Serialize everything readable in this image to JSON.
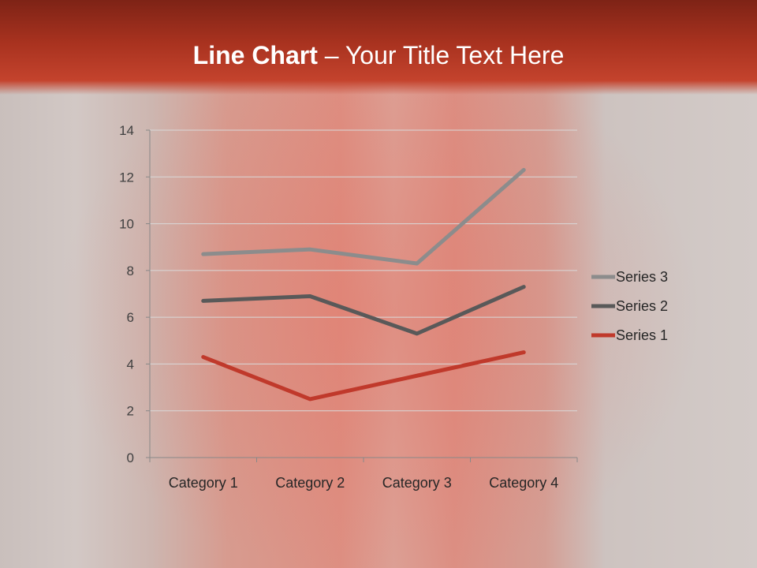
{
  "slide": {
    "title_bold": "Line Chart",
    "title_rest": " – Your Title Text Here"
  },
  "chart_data": {
    "type": "line",
    "stacked": true,
    "categories": [
      "Category 1",
      "Category 2",
      "Category 3",
      "Category 4"
    ],
    "series": [
      {
        "name": "Series 1",
        "values": [
          4.3,
          2.5,
          3.5,
          4.5
        ],
        "color": "#c0392b"
      },
      {
        "name": "Series 2",
        "values": [
          2.4,
          4.4,
          1.8,
          2.8
        ],
        "color": "#595959"
      },
      {
        "name": "Series 3",
        "values": [
          2,
          2,
          3,
          5
        ],
        "color": "#8c8c8c"
      }
    ],
    "ylim": [
      0,
      14
    ],
    "yticks": [
      0,
      2,
      4,
      6,
      8,
      10,
      12,
      14
    ],
    "grid": true,
    "legend": "right"
  }
}
